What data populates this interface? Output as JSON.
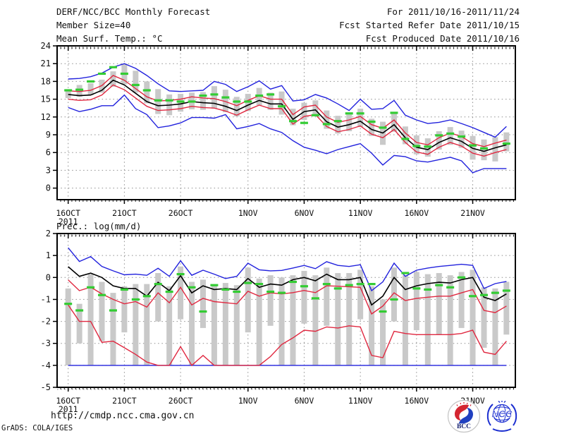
{
  "header": {
    "title": "DERF/NCC/BCC Monthly Forecast",
    "member_size": "Member Size=40",
    "for_range": "For 2011/10/16-2011/11/24",
    "refer_date": "Fcst Started Refer Date 2011/10/15",
    "produced_date": "Fcst Produced Date 2011/10/16"
  },
  "footer": {
    "url": "http://cmdp.ncc.cma.gov.cn",
    "grads_credit": "GrADS: COLA/IGES",
    "logo_bcc": "BCC",
    "logo_ncc": "NCC"
  },
  "colors": {
    "blue": "#2222dd",
    "red": "#e02840",
    "black": "#000000",
    "green": "#33cc33",
    "gray": "#c9c9c9",
    "frame": "#000000",
    "grid": "#8f8f8f",
    "text": "#111111",
    "logo_navy": "#1c2fd0",
    "logo_red": "#d42530"
  },
  "chart_data": [
    {
      "id": "temperature-chart",
      "type": "line",
      "title": "Mean Surf. Temp.: °C",
      "xlabel": "",
      "ylabel": "°C",
      "ylim": [
        -1.95,
        24
      ],
      "grid": true,
      "legend": "none",
      "y_ticks": [
        24,
        21,
        18,
        15,
        12,
        9,
        6,
        3,
        0
      ],
      "x_ticks": [
        {
          "index": 0,
          "label": "16OCT",
          "sublabel": "2011"
        },
        {
          "index": 5,
          "label": "21OCT"
        },
        {
          "index": 10,
          "label": "26OCT"
        },
        {
          "index": 16,
          "label": "1NOV"
        },
        {
          "index": 21,
          "label": "6NOV"
        },
        {
          "index": 26,
          "label": "11NOV"
        },
        {
          "index": 31,
          "label": "16NOV"
        },
        {
          "index": 36,
          "label": "21NOV"
        }
      ],
      "dates": [
        "16OCT",
        "17OCT",
        "18OCT",
        "19OCT",
        "20OCT",
        "21OCT",
        "22OCT",
        "23OCT",
        "24OCT",
        "25OCT",
        "26OCT",
        "27OCT",
        "28OCT",
        "29OCT",
        "30OCT",
        "31OCT",
        "1NOV",
        "2NOV",
        "3NOV",
        "4NOV",
        "5NOV",
        "6NOV",
        "7NOV",
        "8NOV",
        "9NOV",
        "10NOV",
        "11NOV",
        "12NOV",
        "13NOV",
        "14NOV",
        "15NOV",
        "16NOV",
        "17NOV",
        "18NOV",
        "19NOV",
        "20NOV",
        "21NOV",
        "22NOV",
        "23NOV",
        "24NOV"
      ],
      "series": [
        {
          "name": "ensemble-max",
          "type": "line",
          "color": "blue",
          "values": [
            18.4,
            18.5,
            18.8,
            19.4,
            20.4,
            21.0,
            20.2,
            19.0,
            17.6,
            16.4,
            16.3,
            16.4,
            16.5,
            18.0,
            17.5,
            16.3,
            17.1,
            18.1,
            16.7,
            17.3,
            14.7,
            14.9,
            15.8,
            15.2,
            14.2,
            13.1,
            15.0,
            13.3,
            13.4,
            14.8,
            12.3,
            11.5,
            10.9,
            11.1,
            11.5,
            10.9,
            10.2,
            9.4,
            8.6,
            10.4
          ]
        },
        {
          "name": "upper-quartile",
          "type": "line",
          "color": "red",
          "values": [
            16.4,
            16.3,
            16.5,
            17.3,
            19.0,
            18.2,
            16.8,
            15.4,
            14.7,
            14.8,
            15.0,
            15.4,
            15.2,
            15.1,
            14.6,
            13.9,
            14.8,
            15.6,
            15.0,
            15.0,
            12.4,
            13.7,
            14.0,
            12.0,
            11.1,
            11.5,
            12.1,
            10.7,
            10.1,
            11.5,
            9.3,
            7.7,
            7.3,
            8.5,
            9.3,
            8.7,
            7.5,
            7.0,
            7.6,
            8.1
          ]
        },
        {
          "name": "ensemble-mean",
          "type": "line",
          "color": "black",
          "values": [
            15.8,
            15.6,
            15.7,
            16.5,
            18.2,
            17.4,
            16.0,
            14.6,
            13.9,
            14.0,
            14.2,
            14.6,
            14.4,
            14.3,
            13.8,
            13.1,
            14.0,
            14.8,
            14.2,
            14.2,
            11.6,
            12.9,
            13.2,
            11.2,
            10.3,
            10.7,
            11.3,
            9.9,
            9.3,
            10.7,
            8.5,
            6.9,
            6.5,
            7.7,
            8.5,
            7.9,
            6.7,
            6.2,
            6.8,
            7.3
          ]
        },
        {
          "name": "lower-quartile",
          "type": "line",
          "color": "red",
          "values": [
            15.0,
            14.8,
            14.9,
            15.7,
            17.4,
            16.6,
            15.2,
            13.8,
            13.1,
            13.2,
            13.4,
            13.8,
            13.6,
            13.5,
            13.0,
            12.3,
            13.2,
            14.0,
            13.4,
            13.4,
            10.8,
            12.1,
            12.4,
            10.4,
            9.5,
            9.9,
            10.5,
            9.1,
            8.5,
            9.9,
            7.7,
            6.1,
            5.7,
            6.9,
            7.7,
            7.1,
            5.9,
            5.4,
            6.0,
            6.5
          ]
        },
        {
          "name": "ensemble-min",
          "type": "line",
          "color": "blue",
          "values": [
            13.6,
            12.9,
            13.3,
            13.9,
            13.9,
            15.7,
            13.4,
            12.4,
            10.2,
            10.5,
            11.0,
            11.9,
            11.9,
            11.8,
            12.4,
            10.0,
            10.4,
            10.9,
            10.0,
            9.4,
            8.0,
            6.9,
            6.4,
            5.8,
            6.5,
            7.0,
            7.5,
            5.9,
            3.9,
            5.5,
            5.3,
            4.6,
            4.4,
            4.8,
            5.2,
            4.6,
            2.6,
            3.3,
            3.3,
            3.3
          ]
        },
        {
          "name": "observation-dash",
          "type": "dash-markers",
          "color": "green",
          "values": [
            16.5,
            16.6,
            18.0,
            19.3,
            20.4,
            19.3,
            17.4,
            16.5,
            14.8,
            14.8,
            14.6,
            14.6,
            15.6,
            15.8,
            15.3,
            14.6,
            14.6,
            15.6,
            15.8,
            13.8,
            11.3,
            11.0,
            12.3,
            10.8,
            11.3,
            12.6,
            12.6,
            11.2,
            10.2,
            12.7,
            8.3,
            7.1,
            7.0,
            8.9,
            9.2,
            8.7,
            7.2,
            6.7,
            null,
            7.5
          ]
        },
        {
          "name": "member-spread",
          "type": "bar-range",
          "color": "gray",
          "hi": [
            16.6,
            17.4,
            17.7,
            18.3,
            19.7,
            21.0,
            19.8,
            18.0,
            16.7,
            15.8,
            15.9,
            16.1,
            16.2,
            17.2,
            16.6,
            15.4,
            15.9,
            16.9,
            16.1,
            16.3,
            13.4,
            14.4,
            14.8,
            13.1,
            12.2,
            12.4,
            13.4,
            11.7,
            11.2,
            12.6,
            10.4,
            8.9,
            8.4,
            9.6,
            10.3,
            9.7,
            8.8,
            8.2,
            8.6,
            9.4
          ],
          "lo": [
            15.2,
            15.4,
            15.7,
            16.1,
            17.1,
            17.5,
            16.1,
            14.3,
            12.5,
            12.3,
            12.9,
            13.3,
            13.2,
            13.4,
            12.8,
            12.1,
            13.0,
            14.0,
            13.2,
            12.4,
            10.6,
            11.5,
            12.2,
            10.0,
            9.2,
            9.6,
            10.3,
            8.8,
            7.3,
            9.5,
            7.4,
            5.7,
            5.3,
            6.5,
            7.3,
            6.8,
            4.8,
            4.7,
            4.5,
            6.2
          ]
        }
      ]
    },
    {
      "id": "precipitation-chart",
      "type": "line",
      "title": "Prec.: log(mm/d)",
      "xlabel": "",
      "ylabel": "log(mm/d)",
      "ylim": [
        -5,
        2
      ],
      "grid": true,
      "legend": "none",
      "y_ticks": [
        2,
        1,
        0,
        -1,
        -2,
        -3,
        -4,
        -5
      ],
      "x_ticks": [
        {
          "index": 0,
          "label": "16OCT",
          "sublabel": "2011"
        },
        {
          "index": 5,
          "label": "21OCT"
        },
        {
          "index": 10,
          "label": "26OCT"
        },
        {
          "index": 16,
          "label": "1NOV"
        },
        {
          "index": 21,
          "label": "6NOV"
        },
        {
          "index": 26,
          "label": "11NOV"
        },
        {
          "index": 31,
          "label": "16NOV"
        },
        {
          "index": 36,
          "label": "21NOV"
        }
      ],
      "dates": [
        "16OCT",
        "17OCT",
        "18OCT",
        "19OCT",
        "20OCT",
        "21OCT",
        "22OCT",
        "23OCT",
        "24OCT",
        "25OCT",
        "26OCT",
        "27OCT",
        "28OCT",
        "29OCT",
        "30OCT",
        "31OCT",
        "1NOV",
        "2NOV",
        "3NOV",
        "4NOV",
        "5NOV",
        "6NOV",
        "7NOV",
        "8NOV",
        "9NOV",
        "10NOV",
        "11NOV",
        "12NOV",
        "13NOV",
        "14NOV",
        "15NOV",
        "16NOV",
        "17NOV",
        "18NOV",
        "19NOV",
        "20NOV",
        "21NOV",
        "22NOV",
        "23NOV",
        "24NOV"
      ],
      "series": [
        {
          "name": "ensemble-max",
          "type": "line",
          "color": "blue",
          "values": [
            1.35,
            0.73,
            0.95,
            0.5,
            0.3,
            0.12,
            0.15,
            0.1,
            0.42,
            0.05,
            0.76,
            0.1,
            0.33,
            0.15,
            -0.05,
            0.05,
            0.65,
            0.35,
            0.3,
            0.32,
            0.43,
            0.55,
            0.4,
            0.72,
            0.55,
            0.5,
            0.58,
            -0.6,
            -0.2,
            0.65,
            0.05,
            0.33,
            0.43,
            0.5,
            0.55,
            0.6,
            0.55,
            -0.5,
            -0.28,
            -0.18
          ]
        },
        {
          "name": "upper-quartile",
          "type": "line",
          "color": "red",
          "values": [
            -0.11,
            -0.6,
            -0.44,
            -0.75,
            -1.0,
            -1.2,
            -1.1,
            -1.35,
            -0.7,
            -1.15,
            -0.45,
            -1.25,
            -0.95,
            -1.1,
            -1.15,
            -1.2,
            -0.63,
            -0.85,
            -0.7,
            -0.75,
            -0.69,
            -0.59,
            -0.69,
            -0.38,
            -0.4,
            -0.42,
            -0.45,
            -1.66,
            -1.3,
            -0.7,
            -1.05,
            -0.95,
            -0.9,
            -0.85,
            -0.85,
            -0.7,
            -0.55,
            -1.5,
            -1.6,
            -1.3
          ]
        },
        {
          "name": "ensemble-mean",
          "type": "line",
          "color": "black",
          "values": [
            0.49,
            0.05,
            0.2,
            0.0,
            -0.38,
            -0.5,
            -0.5,
            -0.85,
            -0.22,
            -0.6,
            0.08,
            -0.7,
            -0.38,
            -0.55,
            -0.5,
            -0.55,
            -0.05,
            -0.45,
            -0.3,
            -0.35,
            -0.1,
            0.0,
            -0.15,
            0.15,
            -0.1,
            -0.1,
            0.0,
            -1.25,
            -0.85,
            0.0,
            -0.55,
            -0.38,
            -0.28,
            -0.22,
            -0.25,
            -0.1,
            0.0,
            -0.9,
            -1.05,
            -0.75
          ]
        },
        {
          "name": "lower-quartile",
          "type": "line",
          "color": "red",
          "values": [
            -1.25,
            -2.0,
            -2.0,
            -2.95,
            -2.9,
            -3.2,
            -3.5,
            -3.85,
            -4.0,
            -4.0,
            -3.15,
            -4.0,
            -3.55,
            -4.0,
            -4.0,
            -4.0,
            -4.0,
            -4.0,
            -3.6,
            -3.05,
            -2.75,
            -2.4,
            -2.45,
            -2.25,
            -2.3,
            -2.2,
            -2.25,
            -3.55,
            -3.65,
            -2.45,
            -2.55,
            -2.6,
            -2.6,
            -2.6,
            -2.6,
            -2.55,
            -2.4,
            -3.4,
            -3.5,
            -2.9
          ]
        },
        {
          "name": "ensemble-min",
          "type": "line",
          "color": "blue",
          "values": [
            -4.0,
            -4.0,
            -4.0,
            -4.0,
            -4.0,
            -4.0,
            -4.0,
            -4.0,
            -4.0,
            -4.0,
            -4.0,
            -4.0,
            -4.0,
            -4.0,
            -4.0,
            -4.0,
            -4.0,
            -4.0,
            -4.0,
            -4.0,
            -4.0,
            -4.0,
            -4.0,
            -4.0,
            -4.0,
            -4.0,
            -4.0,
            -4.0,
            -4.0,
            -4.0,
            -4.0,
            -4.0,
            -4.0,
            -4.0,
            -4.0,
            -4.0,
            -4.0,
            -4.0,
            -4.0,
            -4.0
          ]
        },
        {
          "name": "observation-dash",
          "type": "dash-markers",
          "color": "green",
          "values": [
            -1.2,
            -1.5,
            -0.45,
            -0.8,
            -1.5,
            -0.55,
            -1.0,
            -0.85,
            -0.3,
            -0.65,
            0.15,
            -0.45,
            -1.55,
            -0.35,
            -0.55,
            -0.65,
            -0.25,
            -0.3,
            -0.65,
            -0.7,
            -0.2,
            -0.4,
            -0.95,
            -0.3,
            -0.5,
            -0.35,
            -0.3,
            -0.3,
            -1.55,
            -1.0,
            0.2,
            -0.5,
            -0.55,
            -0.35,
            -0.45,
            0.0,
            -0.85,
            -0.8,
            -0.7,
            -0.6
          ]
        },
        {
          "name": "member-spread",
          "type": "bar-range",
          "color": "gray",
          "hi": [
            -0.5,
            -1.2,
            0.15,
            -0.2,
            -0.7,
            -0.4,
            -0.3,
            -0.3,
            0.2,
            -0.4,
            0.5,
            -0.2,
            -0.1,
            -0.35,
            -0.25,
            -0.35,
            0.45,
            -0.05,
            0.1,
            0.0,
            0.1,
            0.3,
            0.1,
            0.45,
            0.2,
            0.2,
            0.35,
            -0.4,
            -1.0,
            0.45,
            0.1,
            0.25,
            0.15,
            0.2,
            0.1,
            0.25,
            0.35,
            -0.45,
            -0.5,
            -0.2
          ],
          "lo": [
            -4.0,
            -3.0,
            -4.0,
            -2.9,
            -4.0,
            -2.5,
            -4.0,
            -4.0,
            -2.0,
            -4.0,
            -1.9,
            -4.0,
            -2.3,
            -4.0,
            -4.0,
            -4.0,
            -2.5,
            -4.0,
            -2.2,
            -4.0,
            -4.0,
            -2.1,
            -4.0,
            -2.2,
            -4.0,
            -4.0,
            -1.9,
            -4.0,
            -4.0,
            -2.0,
            -4.0,
            -2.4,
            -4.0,
            -2.6,
            -4.0,
            -2.3,
            -4.0,
            -3.2,
            -4.0,
            -2.6
          ]
        }
      ]
    }
  ]
}
